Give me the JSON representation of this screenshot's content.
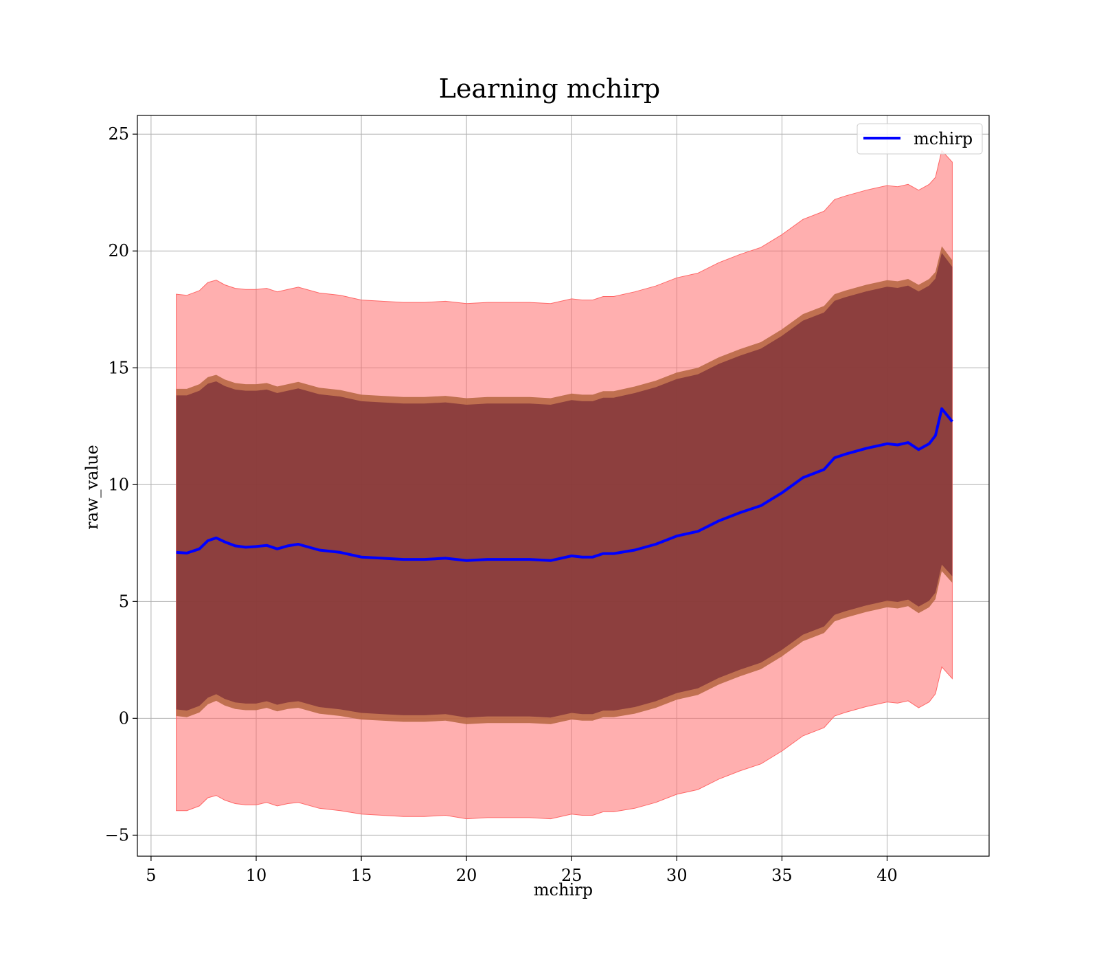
{
  "chart_data": {
    "type": "area",
    "title": "Learning mchirp",
    "xlabel": "mchirp",
    "ylabel": "raw_value",
    "xlim": [
      4.35,
      44.85
    ],
    "ylim": [
      -5.9,
      25.8
    ],
    "xticks": [
      5,
      10,
      15,
      20,
      25,
      30,
      35,
      40
    ],
    "yticks": [
      -5,
      0,
      5,
      10,
      15,
      20,
      25
    ],
    "xtick_labels": [
      "5",
      "10",
      "15",
      "20",
      "25",
      "30",
      "35",
      "40"
    ],
    "ytick_labels": [
      "−5",
      "0",
      "5",
      "10",
      "15",
      "20",
      "25"
    ],
    "grid": true,
    "legend": {
      "location": "top-right",
      "entries": [
        "mchirp"
      ]
    },
    "colors": {
      "line": "#0000ff",
      "outer_band": "#ff6666",
      "inner_band_edge": "#b5653f",
      "inner_band": "#6e2233",
      "grid": "#b0b0b0"
    },
    "series": [
      {
        "name": "mchirp",
        "role": "mean",
        "x": [
          6.2,
          6.7,
          7.3,
          7.7,
          8.1,
          8.5,
          9.0,
          9.5,
          10.0,
          10.5,
          11.0,
          11.5,
          12.0,
          13.0,
          14.0,
          15.0,
          16.0,
          17.0,
          18.0,
          19.0,
          20.0,
          21.0,
          22.0,
          23.0,
          24.0,
          25.0,
          25.5,
          26.0,
          26.5,
          27.0,
          28.0,
          29.0,
          30.0,
          31.0,
          32.0,
          33.0,
          34.0,
          35.0,
          36.0,
          37.0,
          37.5,
          38.0,
          39.0,
          40.0,
          40.5,
          41.0,
          41.5,
          42.0,
          42.3,
          42.6,
          43.1
        ],
        "y": [
          7.1,
          7.07,
          7.25,
          7.6,
          7.72,
          7.55,
          7.38,
          7.32,
          7.35,
          7.4,
          7.25,
          7.38,
          7.45,
          7.2,
          7.1,
          6.9,
          6.85,
          6.8,
          6.8,
          6.85,
          6.75,
          6.8,
          6.8,
          6.8,
          6.75,
          6.95,
          6.9,
          6.9,
          7.05,
          7.05,
          7.2,
          7.45,
          7.8,
          8.0,
          8.45,
          8.8,
          9.1,
          9.65,
          10.3,
          10.65,
          11.15,
          11.3,
          11.55,
          11.75,
          11.7,
          11.8,
          11.5,
          11.75,
          12.1,
          13.25,
          12.7
        ]
      },
      {
        "name": "",
        "role": "inner_band",
        "x": [
          6.2,
          6.7,
          7.3,
          7.7,
          8.1,
          8.5,
          9.0,
          9.5,
          10.0,
          10.5,
          11.0,
          11.5,
          12.0,
          13.0,
          14.0,
          15.0,
          16.0,
          17.0,
          18.0,
          19.0,
          20.0,
          21.0,
          22.0,
          23.0,
          24.0,
          25.0,
          25.5,
          26.0,
          26.5,
          27.0,
          28.0,
          29.0,
          30.0,
          31.0,
          32.0,
          33.0,
          34.0,
          35.0,
          36.0,
          37.0,
          37.5,
          38.0,
          39.0,
          40.0,
          40.5,
          41.0,
          41.5,
          42.0,
          42.3,
          42.6,
          43.1
        ],
        "upper": [
          14.1,
          14.1,
          14.3,
          14.6,
          14.7,
          14.5,
          14.35,
          14.3,
          14.3,
          14.35,
          14.2,
          14.3,
          14.4,
          14.15,
          14.05,
          13.85,
          13.8,
          13.75,
          13.75,
          13.8,
          13.7,
          13.75,
          13.75,
          13.75,
          13.7,
          13.9,
          13.85,
          13.85,
          14.0,
          14.0,
          14.2,
          14.45,
          14.8,
          15.0,
          15.45,
          15.8,
          16.1,
          16.65,
          17.3,
          17.65,
          18.15,
          18.3,
          18.55,
          18.75,
          18.7,
          18.8,
          18.55,
          18.8,
          19.1,
          20.2,
          19.6
        ],
        "lower": [
          0.1,
          0.05,
          0.25,
          0.6,
          0.75,
          0.55,
          0.4,
          0.35,
          0.35,
          0.45,
          0.3,
          0.4,
          0.45,
          0.2,
          0.1,
          -0.05,
          -0.1,
          -0.15,
          -0.15,
          -0.1,
          -0.25,
          -0.2,
          -0.2,
          -0.2,
          -0.25,
          -0.05,
          -0.1,
          -0.1,
          0.05,
          0.05,
          0.2,
          0.45,
          0.8,
          1.0,
          1.45,
          1.8,
          2.1,
          2.65,
          3.3,
          3.65,
          4.15,
          4.3,
          4.55,
          4.75,
          4.7,
          4.8,
          4.5,
          4.75,
          5.1,
          6.3,
          5.8
        ]
      },
      {
        "name": "",
        "role": "outer_band",
        "x": [
          6.2,
          6.7,
          7.3,
          7.7,
          8.1,
          8.5,
          9.0,
          9.5,
          10.0,
          10.5,
          11.0,
          11.5,
          12.0,
          13.0,
          14.0,
          15.0,
          16.0,
          17.0,
          18.0,
          19.0,
          20.0,
          21.0,
          22.0,
          23.0,
          24.0,
          25.0,
          25.5,
          26.0,
          26.5,
          27.0,
          28.0,
          29.0,
          30.0,
          31.0,
          32.0,
          33.0,
          34.0,
          35.0,
          36.0,
          37.0,
          37.5,
          38.0,
          39.0,
          40.0,
          40.5,
          41.0,
          41.5,
          42.0,
          42.3,
          42.6,
          43.1
        ],
        "upper": [
          18.15,
          18.1,
          18.3,
          18.65,
          18.75,
          18.55,
          18.4,
          18.35,
          18.35,
          18.4,
          18.25,
          18.35,
          18.45,
          18.2,
          18.1,
          17.9,
          17.85,
          17.8,
          17.8,
          17.85,
          17.75,
          17.8,
          17.8,
          17.8,
          17.75,
          17.95,
          17.9,
          17.9,
          18.05,
          18.05,
          18.25,
          18.5,
          18.85,
          19.05,
          19.5,
          19.85,
          20.15,
          20.7,
          21.35,
          21.7,
          22.2,
          22.35,
          22.6,
          22.8,
          22.75,
          22.85,
          22.6,
          22.85,
          23.15,
          24.3,
          23.8
        ],
        "lower": [
          -3.95,
          -3.95,
          -3.75,
          -3.4,
          -3.3,
          -3.5,
          -3.65,
          -3.7,
          -3.7,
          -3.6,
          -3.75,
          -3.65,
          -3.6,
          -3.85,
          -3.95,
          -4.1,
          -4.15,
          -4.2,
          -4.2,
          -4.15,
          -4.3,
          -4.25,
          -4.25,
          -4.25,
          -4.3,
          -4.1,
          -4.15,
          -4.15,
          -4.0,
          -4.0,
          -3.85,
          -3.6,
          -3.25,
          -3.05,
          -2.6,
          -2.25,
          -1.95,
          -1.4,
          -0.75,
          -0.4,
          0.1,
          0.25,
          0.5,
          0.7,
          0.65,
          0.75,
          0.45,
          0.7,
          1.05,
          2.2,
          1.7
        ]
      }
    ]
  }
}
